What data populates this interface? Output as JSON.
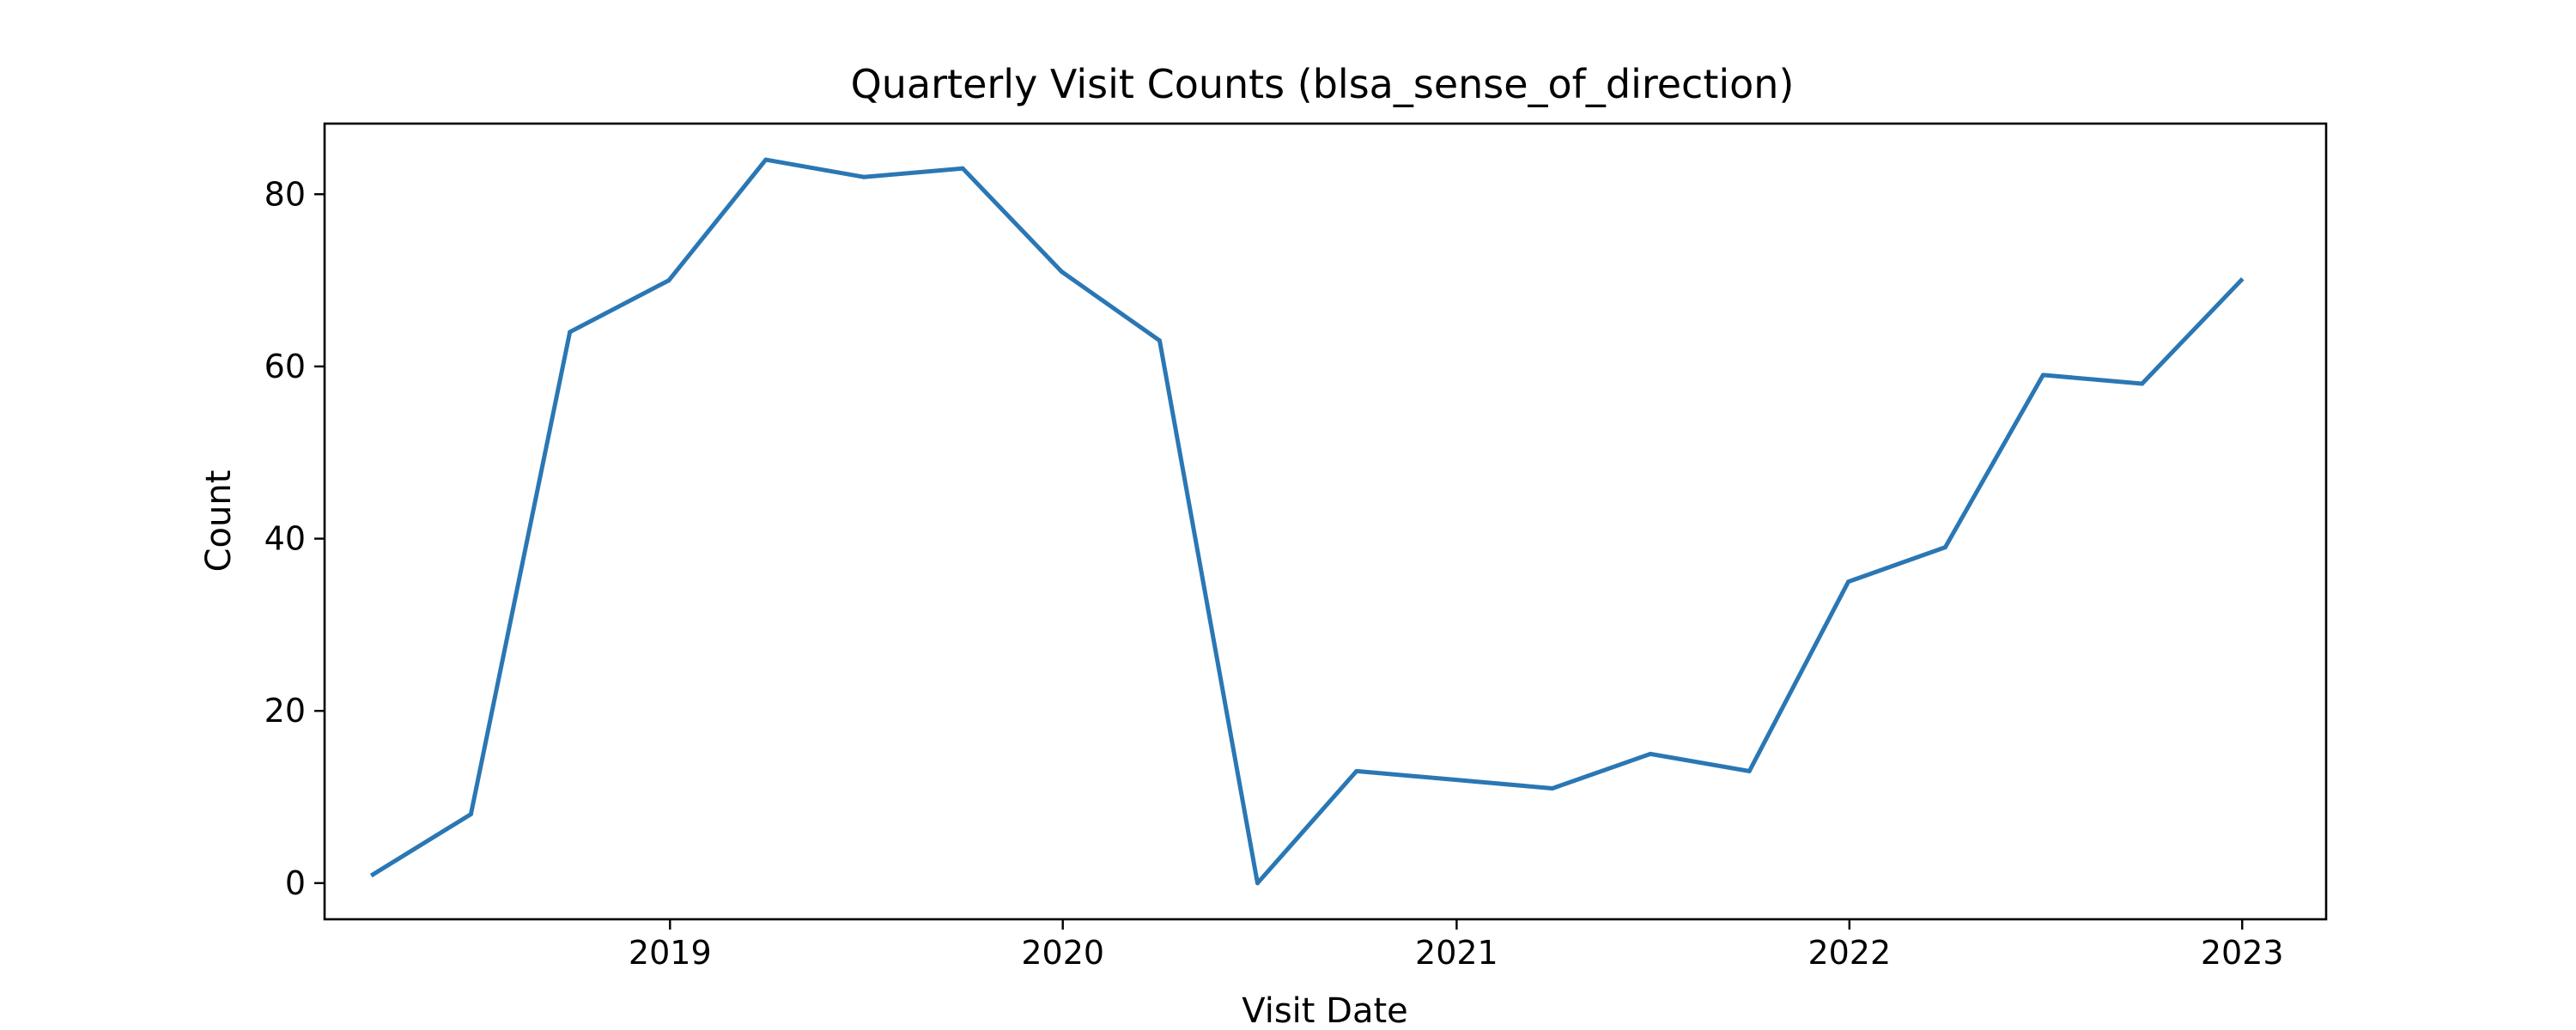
{
  "chart_data": {
    "type": "line",
    "title": "Quarterly Visit Counts (blsa_sense_of_direction)",
    "xlabel": "Visit Date",
    "ylabel": "Count",
    "x_ticks": [
      "2019",
      "2020",
      "2021",
      "2022",
      "2023"
    ],
    "y_ticks": [
      0,
      20,
      40,
      60,
      80
    ],
    "ylim": [
      -4.2,
      88.2
    ],
    "xlim": [
      "2018-02-14",
      "2023-03-20"
    ],
    "grid": false,
    "legend": "none",
    "colors": {
      "line": "#2a77b4",
      "axes": "#000000"
    },
    "series": [
      {
        "x": [
          "2018-03-31",
          "2018-06-30",
          "2018-09-30",
          "2018-12-31",
          "2019-03-31",
          "2019-06-30",
          "2019-09-30",
          "2019-12-31",
          "2020-03-31",
          "2020-06-30",
          "2020-09-30",
          "2020-12-31",
          "2021-03-31",
          "2021-06-30",
          "2021-09-30",
          "2021-12-31",
          "2022-03-31",
          "2022-06-30",
          "2022-09-30",
          "2022-12-31"
        ],
        "values": [
          1,
          8,
          64,
          70,
          84,
          82,
          83,
          71,
          63,
          0,
          13,
          12,
          11,
          15,
          13,
          35,
          39,
          59,
          58,
          70
        ]
      }
    ]
  }
}
